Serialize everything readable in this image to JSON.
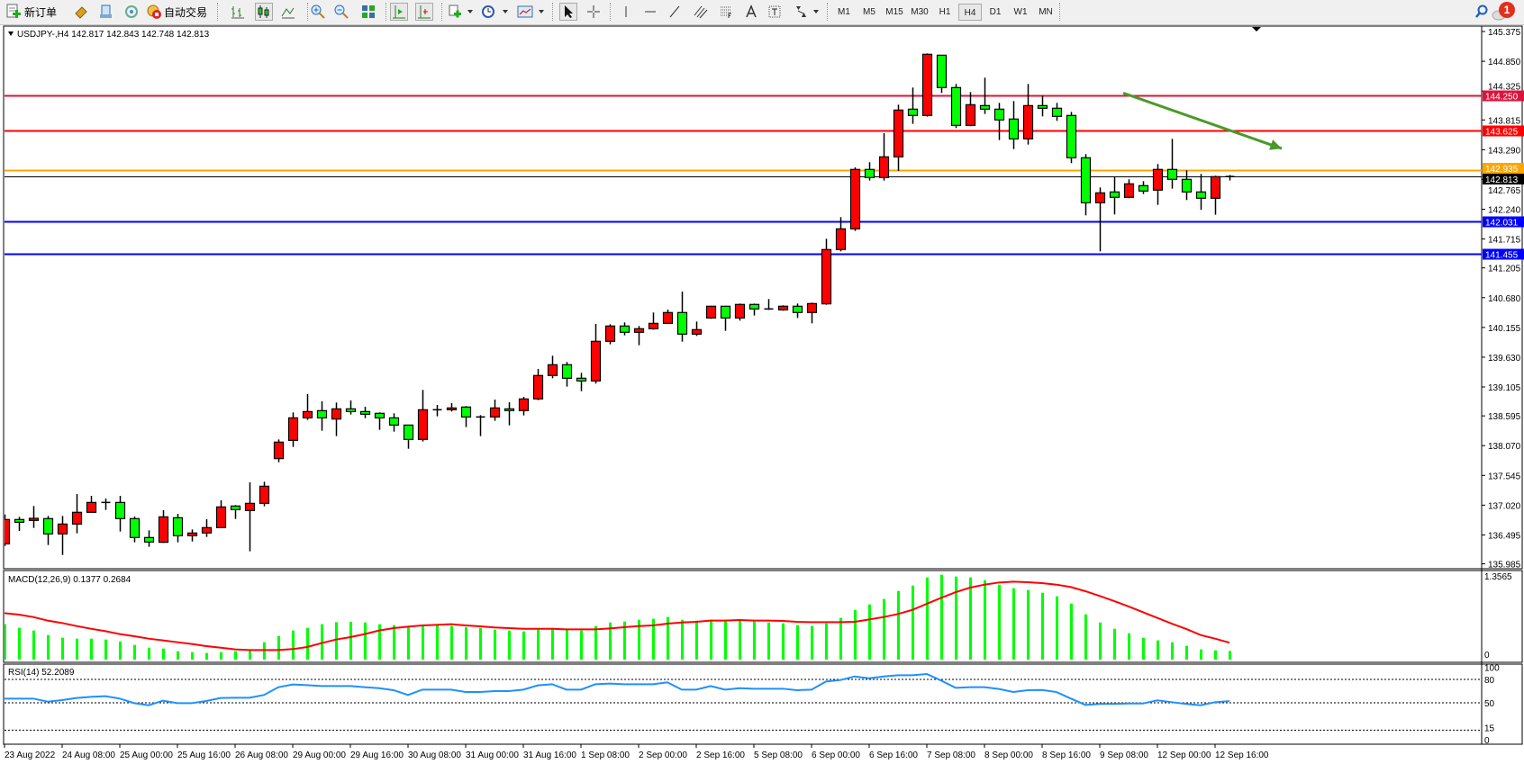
{
  "toolbar": {
    "new_order_label": "新订单",
    "auto_trading_label": "自动交易",
    "timeframes": [
      "M1",
      "M5",
      "M15",
      "M30",
      "H1",
      "H4",
      "D1",
      "W1",
      "MN"
    ],
    "active_timeframe": "H4",
    "notification_count": "1",
    "icons": [
      "new-order-icon",
      "gold-icon",
      "market-watch-icon",
      "signals-icon",
      "auto-trading-icon",
      "bar-chart-icon",
      "candlestick-icon",
      "line-chart-icon",
      "zoom-in-icon",
      "zoom-out-icon",
      "tile-windows-icon",
      "auto-scroll-icon",
      "chart-shift-icon",
      "indicators-icon",
      "periods-icon",
      "templates-icon",
      "cursor-icon",
      "crosshair-icon",
      "vertical-line-icon",
      "horizontal-line-icon",
      "trendline-icon",
      "equidistant-channel-icon",
      "fibonacci-icon",
      "text-icon",
      "text-label-icon",
      "arrows-icon",
      "search-icon",
      "notification-icon"
    ]
  },
  "chart_data": {
    "type": "candlestick",
    "symbol_header": "USDJPY-,H4  142.817 142.843 142.748 142.813",
    "up_color": "#ff0000",
    "down_color": "#00ff00",
    "ylim": [
      135.985,
      145.375
    ],
    "y_ticks": [
      "145.375",
      "144.850",
      "144.325",
      "143.815",
      "143.290",
      "142.765",
      "142.240",
      "141.715",
      "141.205",
      "140.680",
      "140.155",
      "139.630",
      "139.105",
      "138.595",
      "138.070",
      "137.545",
      "137.020",
      "136.495",
      "135.985"
    ],
    "x_labels": [
      "23 Aug 2022",
      "24 Aug 08:00",
      "25 Aug 00:00",
      "25 Aug 16:00",
      "26 Aug 08:00",
      "29 Aug 00:00",
      "29 Aug 16:00",
      "30 Aug 08:00",
      "31 Aug 00:00",
      "31 Aug 16:00",
      "1 Sep 08:00",
      "2 Sep 00:00",
      "2 Sep 16:00",
      "5 Sep 08:00",
      "6 Sep 00:00",
      "6 Sep 16:00",
      "7 Sep 08:00",
      "8 Sep 00:00",
      "8 Sep 16:00",
      "9 Sep 08:00",
      "12 Sep 00:00",
      "12 Sep 16:00"
    ],
    "candles_ohlc": [
      [
        "23 Aug 16:00",
        136.338,
        136.857,
        136.301,
        136.767
      ],
      [
        "23 Aug 20:00",
        136.767,
        136.814,
        136.566,
        136.719
      ],
      [
        "24 Aug 00:00",
        136.751,
        137.005,
        136.618,
        136.788
      ],
      [
        "24 Aug 04:00",
        136.783,
        136.83,
        136.317,
        136.513
      ],
      [
        "24 Aug 08:00",
        136.513,
        136.83,
        136.142,
        136.687
      ],
      [
        "24 Aug 12:00",
        136.687,
        137.216,
        136.523,
        136.894
      ],
      [
        "24 Aug 16:00",
        136.894,
        137.185,
        136.894,
        137.068
      ],
      [
        "24 Aug 20:00",
        137.068,
        137.137,
        136.936,
        137.068
      ],
      [
        "25 Aug 00:00",
        137.068,
        137.185,
        136.555,
        136.783
      ],
      [
        "25 Aug 04:00",
        136.783,
        136.82,
        136.365,
        136.449
      ],
      [
        "25 Aug 08:00",
        136.449,
        136.576,
        136.285,
        136.37
      ],
      [
        "25 Aug 12:00",
        136.365,
        136.931,
        136.354,
        136.814
      ],
      [
        "25 Aug 16:00",
        136.798,
        136.867,
        136.365,
        136.481
      ],
      [
        "25 Aug 20:00",
        136.481,
        136.592,
        136.38,
        136.529
      ],
      [
        "26 Aug 00:00",
        136.529,
        136.772,
        136.46,
        136.624
      ],
      [
        "26 Aug 04:00",
        136.624,
        137.105,
        136.624,
        136.989
      ],
      [
        "26 Aug 08:00",
        137.005,
        137.021,
        136.777,
        136.941
      ],
      [
        "26 Aug 12:00",
        136.925,
        137.423,
        136.206,
        137.052
      ],
      [
        "26 Aug 16:00",
        137.052,
        137.433,
        137.0,
        137.354
      ],
      [
        "26 Aug 20:00",
        137.841,
        138.179,
        137.777,
        138.132
      ],
      [
        "29 Aug 00:00",
        138.163,
        138.656,
        138.047,
        138.56
      ],
      [
        "29 Aug 04:00",
        138.56,
        138.978,
        138.523,
        138.671
      ],
      [
        "29 Aug 08:00",
        138.687,
        138.851,
        138.333,
        138.56
      ],
      [
        "29 Aug 12:00",
        138.539,
        138.83,
        138.238,
        138.719
      ],
      [
        "29 Aug 16:00",
        138.719,
        138.867,
        138.619,
        138.671
      ],
      [
        "29 Aug 20:00",
        138.671,
        138.756,
        138.555,
        138.624
      ],
      [
        "30 Aug 00:00",
        138.64,
        138.656,
        138.349,
        138.56
      ],
      [
        "30 Aug 04:00",
        138.56,
        138.64,
        138.317,
        138.433
      ],
      [
        "30 Aug 08:00",
        138.433,
        138.433,
        138.015,
        138.179
      ],
      [
        "30 Aug 12:00",
        138.18,
        139.053,
        138.143,
        138.703
      ],
      [
        "30 Aug 16:00",
        138.703,
        138.788,
        138.587,
        138.703
      ],
      [
        "30 Aug 20:00",
        138.703,
        138.82,
        138.672,
        138.735
      ],
      [
        "31 Aug 00:00",
        138.751,
        138.767,
        138.397,
        138.576
      ],
      [
        "31 Aug 04:00",
        138.576,
        138.608,
        138.238,
        138.576
      ],
      [
        "31 Aug 08:00",
        138.576,
        138.883,
        138.508,
        138.735
      ],
      [
        "31 Aug 12:00",
        138.719,
        138.836,
        138.428,
        138.688
      ],
      [
        "31 Aug 16:00",
        138.688,
        138.931,
        138.603,
        138.894
      ],
      [
        "31 Aug 20:00",
        138.894,
        139.423,
        138.873,
        139.307
      ],
      [
        "1 Sep 00:00",
        139.307,
        139.656,
        139.259,
        139.497
      ],
      [
        "1 Sep 04:00",
        139.497,
        139.545,
        139.111,
        139.259
      ],
      [
        "1 Sep 08:00",
        139.259,
        139.354,
        139.031,
        139.211
      ],
      [
        "1 Sep 12:00",
        139.211,
        140.217,
        139.164,
        139.91
      ],
      [
        "1 Sep 16:00",
        139.91,
        140.211,
        139.857,
        140.18
      ],
      [
        "1 Sep 20:00",
        140.18,
        140.243,
        140.016,
        140.069
      ],
      [
        "2 Sep 00:00",
        140.069,
        140.18,
        139.841,
        140.132
      ],
      [
        "2 Sep 04:00",
        140.132,
        140.418,
        140.116,
        140.227
      ],
      [
        "2 Sep 08:00",
        140.227,
        140.471,
        140.227,
        140.418
      ],
      [
        "2 Sep 12:00",
        140.418,
        140.788,
        139.904,
        140.037
      ],
      [
        "2 Sep 16:00",
        140.037,
        140.259,
        140.005,
        140.116
      ],
      [
        "2 Sep 20:00",
        140.322,
        140.529,
        140.307,
        140.529
      ],
      [
        "5 Sep 00:00",
        140.529,
        140.529,
        140.095,
        140.322
      ],
      [
        "5 Sep 04:00",
        140.322,
        140.576,
        140.275,
        140.561
      ],
      [
        "5 Sep 08:00",
        140.561,
        140.576,
        140.365,
        140.481
      ],
      [
        "5 Sep 12:00",
        140.481,
        140.656,
        140.465,
        140.481
      ],
      [
        "5 Sep 16:00",
        140.465,
        140.545,
        140.449,
        140.529
      ],
      [
        "5 Sep 20:00",
        140.529,
        140.576,
        140.322,
        140.418
      ],
      [
        "6 Sep 00:00",
        140.418,
        140.592,
        140.227,
        140.576
      ],
      [
        "6 Sep 04:00",
        140.571,
        141.719,
        140.555,
        141.529
      ],
      [
        "6 Sep 08:00",
        141.529,
        142.1,
        141.497,
        141.894
      ],
      [
        "6 Sep 12:00",
        141.894,
        142.979,
        141.857,
        142.942
      ],
      [
        "6 Sep 16:00",
        142.942,
        143.069,
        142.746,
        142.799
      ],
      [
        "6 Sep 20:00",
        142.799,
        143.582,
        142.746,
        143.164
      ],
      [
        "7 Sep 00:00",
        143.164,
        144.084,
        142.915,
        143.989
      ],
      [
        "7 Sep 04:00",
        144.005,
        144.386,
        143.746,
        143.894
      ],
      [
        "7 Sep 08:00",
        143.894,
        144.989,
        143.873,
        144.973
      ],
      [
        "7 Sep 12:00",
        144.957,
        144.957,
        144.291,
        144.386
      ],
      [
        "7 Sep 16:00",
        144.386,
        144.449,
        143.672,
        143.719
      ],
      [
        "7 Sep 20:00",
        143.719,
        144.307,
        143.704,
        144.084
      ],
      [
        "8 Sep 00:00",
        144.068,
        144.561,
        143.921,
        144.005
      ],
      [
        "8 Sep 04:00",
        144.005,
        144.116,
        143.46,
        143.815
      ],
      [
        "8 Sep 08:00",
        143.831,
        144.148,
        143.301,
        143.481
      ],
      [
        "8 Sep 12:00",
        143.481,
        144.449,
        143.381,
        144.068
      ],
      [
        "8 Sep 16:00",
        144.068,
        144.243,
        143.878,
        144.021
      ],
      [
        "8 Sep 20:00",
        144.021,
        144.116,
        143.799,
        143.878
      ],
      [
        "9 Sep 00:00",
        143.894,
        143.957,
        143.053,
        143.148
      ],
      [
        "9 Sep 04:00",
        143.148,
        143.212,
        142.132,
        142.354
      ],
      [
        "9 Sep 08:00",
        142.354,
        142.624,
        141.497,
        142.529
      ],
      [
        "9 Sep 12:00",
        142.545,
        142.815,
        142.148,
        142.45
      ],
      [
        "9 Sep 16:00",
        142.45,
        142.767,
        142.434,
        142.688
      ],
      [
        "9 Sep 20:00",
        142.656,
        142.735,
        142.508,
        142.561
      ],
      [
        "12 Sep 00:00",
        142.577,
        143.037,
        142.317,
        142.942
      ],
      [
        "12 Sep 04:00",
        142.942,
        143.481,
        142.603,
        142.767
      ],
      [
        "12 Sep 08:00",
        142.767,
        142.926,
        142.402,
        142.545
      ],
      [
        "12 Sep 12:00",
        142.545,
        142.862,
        142.228,
        142.434
      ],
      [
        "12 Sep 16:00",
        142.434,
        142.831,
        142.143,
        142.815
      ],
      [
        "12 Sep 20:00",
        142.817,
        142.843,
        142.748,
        142.813
      ]
    ],
    "horizontal_lines": [
      {
        "price": 144.25,
        "label": "144.250",
        "color": "#dc143c"
      },
      {
        "price": 143.625,
        "label": "143.625",
        "color": "#ff0000"
      },
      {
        "price": 142.935,
        "label": "142.935",
        "color": "#ffa500"
      },
      {
        "price": 142.813,
        "label": "142.813",
        "color": "#000000"
      },
      {
        "price": 142.031,
        "label": "142.031",
        "color": "#0000ff"
      },
      {
        "price": 141.455,
        "label": "141.455",
        "color": "#0000ff"
      }
    ],
    "trend_arrow": {
      "color": "#4a9a2a",
      "from": {
        "time": "9 Sep 12:00",
        "price": 144.29
      },
      "to": {
        "time": "13 Sep 08:00",
        "price": 143.31
      }
    },
    "macd": {
      "label": "MACD(12,26,9) 0.1377 0.2684",
      "axis_labels": [
        "1.3565",
        "0"
      ],
      "ylim": [
        0,
        1.3565
      ],
      "histogram_color": "#00ff00",
      "signal_color": "#ff0000",
      "histogram": [
        0.562,
        0.505,
        0.462,
        0.39,
        0.348,
        0.333,
        0.333,
        0.319,
        0.29,
        0.233,
        0.19,
        0.176,
        0.133,
        0.119,
        0.105,
        0.119,
        0.133,
        0.162,
        0.276,
        0.376,
        0.462,
        0.505,
        0.562,
        0.595,
        0.6,
        0.59,
        0.562,
        0.548,
        0.519,
        0.533,
        0.562,
        0.533,
        0.514,
        0.505,
        0.476,
        0.462,
        0.448,
        0.476,
        0.505,
        0.476,
        0.462,
        0.533,
        0.59,
        0.605,
        0.633,
        0.648,
        0.676,
        0.633,
        0.619,
        0.633,
        0.619,
        0.619,
        0.605,
        0.59,
        0.576,
        0.548,
        0.533,
        0.576,
        0.662,
        0.79,
        0.876,
        0.962,
        1.09,
        1.176,
        1.305,
        1.348,
        1.319,
        1.305,
        1.262,
        1.19,
        1.133,
        1.105,
        1.062,
        1.005,
        0.89,
        0.719,
        0.59,
        0.49,
        0.419,
        0.348,
        0.305,
        0.276,
        0.219,
        0.162,
        0.148,
        0.1377
      ],
      "signal": [
        0.738,
        0.714,
        0.676,
        0.619,
        0.581,
        0.533,
        0.49,
        0.452,
        0.405,
        0.371,
        0.333,
        0.305,
        0.276,
        0.248,
        0.214,
        0.19,
        0.162,
        0.152,
        0.152,
        0.152,
        0.167,
        0.2,
        0.262,
        0.319,
        0.357,
        0.405,
        0.462,
        0.5,
        0.524,
        0.543,
        0.552,
        0.562,
        0.543,
        0.529,
        0.51,
        0.5,
        0.49,
        0.49,
        0.49,
        0.481,
        0.481,
        0.481,
        0.495,
        0.514,
        0.533,
        0.543,
        0.571,
        0.59,
        0.6,
        0.619,
        0.619,
        0.629,
        0.619,
        0.619,
        0.614,
        0.6,
        0.595,
        0.595,
        0.595,
        0.6,
        0.638,
        0.676,
        0.724,
        0.79,
        0.886,
        0.981,
        1.071,
        1.143,
        1.19,
        1.224,
        1.238,
        1.229,
        1.214,
        1.19,
        1.152,
        1.086,
        1.01,
        0.929,
        0.843,
        0.752,
        0.662,
        0.571,
        0.486,
        0.39,
        0.333,
        0.2684
      ]
    },
    "rsi": {
      "label": "RSI(14) 52.2089",
      "axis_labels": [
        "100",
        "80",
        "50",
        "15",
        "0"
      ],
      "levels": [
        80,
        50,
        15
      ],
      "ylim": [
        0,
        100
      ],
      "color": "#1e90ff",
      "values": [
        55.4,
        55.4,
        55.4,
        51.5,
        53.5,
        56.2,
        57.7,
        58.5,
        55.4,
        49.6,
        46.9,
        52.7,
        49.6,
        49.6,
        52.3,
        56.2,
        56.5,
        56.5,
        60.0,
        70.0,
        73.5,
        72.7,
        71.5,
        71.5,
        71.5,
        70.0,
        68.8,
        66.2,
        60.0,
        66.9,
        66.9,
        66.9,
        63.8,
        63.8,
        65.0,
        65.0,
        66.9,
        72.3,
        73.8,
        66.9,
        66.9,
        73.8,
        74.6,
        73.8,
        73.8,
        73.8,
        76.2,
        66.9,
        66.9,
        71.5,
        66.9,
        68.8,
        68.1,
        68.1,
        68.1,
        66.2,
        66.9,
        77.3,
        79.2,
        83.8,
        81.5,
        83.8,
        85.4,
        85.4,
        86.9,
        78.5,
        69.2,
        70.0,
        70.0,
        67.7,
        63.8,
        66.2,
        66.5,
        63.8,
        55.4,
        47.3,
        48.5,
        48.5,
        49.2,
        49.2,
        53.1,
        50.8,
        48.5,
        46.9,
        50.8,
        52.2089
      ]
    }
  }
}
